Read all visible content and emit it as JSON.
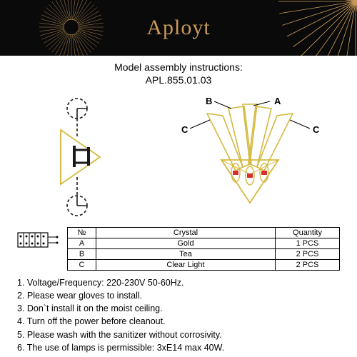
{
  "brand": "Aployt",
  "brand_color": "#c89b5a",
  "header_bg": "#0a0a0a",
  "ray_color": "#c89b5a",
  "subtitle_line1": "Model assembly instructions:",
  "subtitle_line2": "APL.855.01.03",
  "diagram": {
    "gold": "#d4b93f",
    "red": "#d62f2f",
    "black": "#1a1a1a",
    "labels": {
      "a": "A",
      "b": "B",
      "c_left": "C",
      "c_right": "C"
    },
    "label_fontweight": "bold",
    "label_fontsize": 13
  },
  "table": {
    "headers": [
      "№",
      "Crystal",
      "Quantity"
    ],
    "rows": [
      [
        "A",
        "Gold",
        "1 PCS"
      ],
      [
        "B",
        "Tea",
        "2 PCS"
      ],
      [
        "C",
        "Clear Light",
        "2 PCS"
      ]
    ]
  },
  "notes": [
    "Voltage/Frequency: 220-230V 50-60Hz.",
    "Please wear gloves to install.",
    "Don`t install it on the moist ceiling.",
    "Turn off the power before cleanout.",
    "Please wash with the sanitizer without corrosivity.",
    "The use of lamps is permissible: 3xE14 max 40W."
  ]
}
